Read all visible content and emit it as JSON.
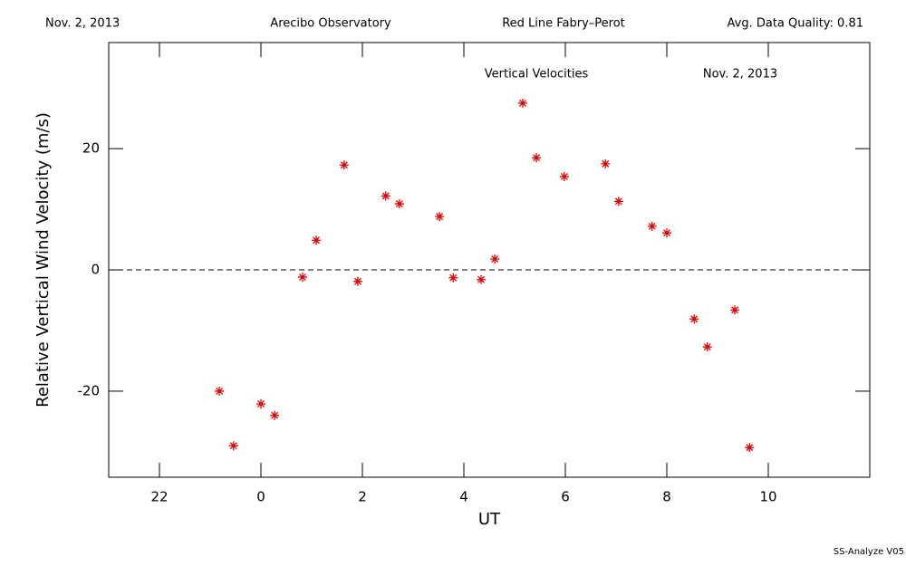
{
  "chart_data": {
    "type": "scatter",
    "header": [
      "Nov. 2, 2013",
      "Arecibo Observatory",
      "Red Line Fabry–Perot",
      "Avg. Data Quality: 0.81"
    ],
    "title": "Vertical Velocities",
    "subtitle": "Nov. 2, 2013",
    "x_label": "UT",
    "y_label": "Relative Vertical Wind Velocity (m/s)",
    "footer": "SS-Analyze V05",
    "color": "#e00000",
    "marker": "asterisk",
    "hline": 0,
    "x": [
      -0.82,
      -0.54,
      0.0,
      0.27,
      0.82,
      1.09,
      1.64,
      1.91,
      2.46,
      2.73,
      3.52,
      3.79,
      4.34,
      4.61,
      5.16,
      5.43,
      5.98,
      6.79,
      7.05,
      7.71,
      8.0,
      8.54,
      8.8,
      9.34,
      9.63
    ],
    "values": [
      -20.0,
      -29.0,
      -22.1,
      -24.0,
      -1.2,
      4.9,
      17.3,
      -1.9,
      12.2,
      10.9,
      8.8,
      -1.3,
      -1.6,
      1.8,
      27.5,
      18.5,
      15.4,
      17.5,
      11.3,
      7.2,
      6.1,
      -8.1,
      -12.7,
      -6.6,
      -29.3
    ],
    "xlim": [
      -3,
      12
    ],
    "ylim": [
      -34.2,
      37.5
    ],
    "xticks": [
      {
        "value": -2,
        "label": "22"
      },
      0,
      2,
      4,
      6,
      8,
      10
    ],
    "yticks": [
      -20,
      0,
      20
    ]
  }
}
